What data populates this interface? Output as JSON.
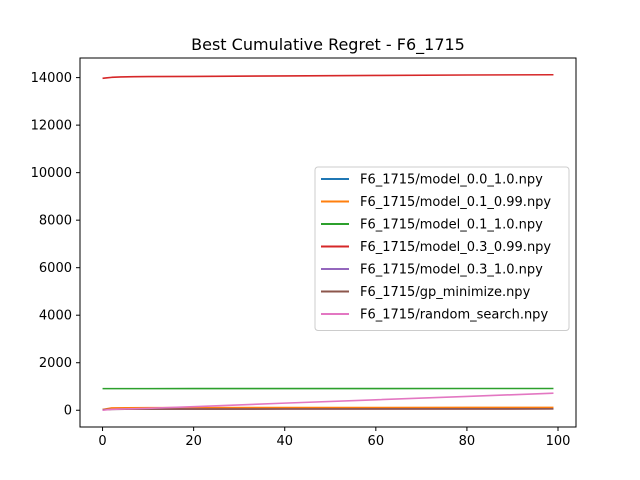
{
  "chart_data": {
    "type": "line",
    "title": "Best Cumulative Regret - F6_1715",
    "xlabel": "",
    "ylabel": "",
    "xlim": [
      -4.95,
      103.95
    ],
    "ylim": [
      -705,
      14825
    ],
    "xticks": [
      0,
      20,
      40,
      60,
      80,
      100
    ],
    "yticks": [
      0,
      2000,
      4000,
      6000,
      8000,
      10000,
      12000,
      14000
    ],
    "grid": false,
    "legend_position": "center-right",
    "series": [
      {
        "name": "F6_1715/model_0.0_1.0.npy",
        "color": "#1f77b4",
        "x": [
          0,
          2,
          5,
          10,
          20,
          40,
          60,
          80,
          99
        ],
        "y": [
          30,
          55,
          60,
          62,
          65,
          68,
          70,
          72,
          75
        ]
      },
      {
        "name": "F6_1715/model_0.1_0.99.npy",
        "color": "#ff7f0e",
        "x": [
          0,
          2,
          5,
          10,
          20,
          40,
          60,
          80,
          99
        ],
        "y": [
          30,
          100,
          105,
          108,
          110,
          112,
          115,
          117,
          120
        ]
      },
      {
        "name": "F6_1715/model_0.1_1.0.npy",
        "color": "#2ca02c",
        "x": [
          0,
          2,
          5,
          10,
          20,
          40,
          60,
          80,
          99
        ],
        "y": [
          910,
          910,
          910,
          910,
          912,
          913,
          914,
          915,
          915
        ]
      },
      {
        "name": "F6_1715/model_0.3_0.99.npy",
        "color": "#d62728",
        "x": [
          0,
          1,
          2,
          4,
          7,
          10,
          20,
          40,
          60,
          80,
          99
        ],
        "y": [
          13970,
          13990,
          14010,
          14030,
          14040,
          14045,
          14050,
          14070,
          14090,
          14110,
          14120
        ]
      },
      {
        "name": "F6_1715/model_0.3_1.0.npy",
        "color": "#9467bd",
        "x": [
          0,
          2,
          5,
          10,
          20,
          40,
          60,
          80,
          99
        ],
        "y": [
          20,
          40,
          45,
          48,
          50,
          52,
          54,
          56,
          58
        ]
      },
      {
        "name": "F6_1715/gp_minimize.npy",
        "color": "#8c564b",
        "x": [
          0,
          2,
          5,
          10,
          20,
          40,
          60,
          80,
          99
        ],
        "y": [
          20,
          40,
          45,
          48,
          50,
          52,
          54,
          56,
          58
        ]
      },
      {
        "name": "F6_1715/random_search.npy",
        "color": "#e377c2",
        "x": [
          0,
          2,
          5,
          10,
          20,
          40,
          60,
          80,
          99
        ],
        "y": [
          0,
          40,
          55,
          80,
          150,
          300,
          440,
          580,
          720
        ]
      }
    ]
  }
}
